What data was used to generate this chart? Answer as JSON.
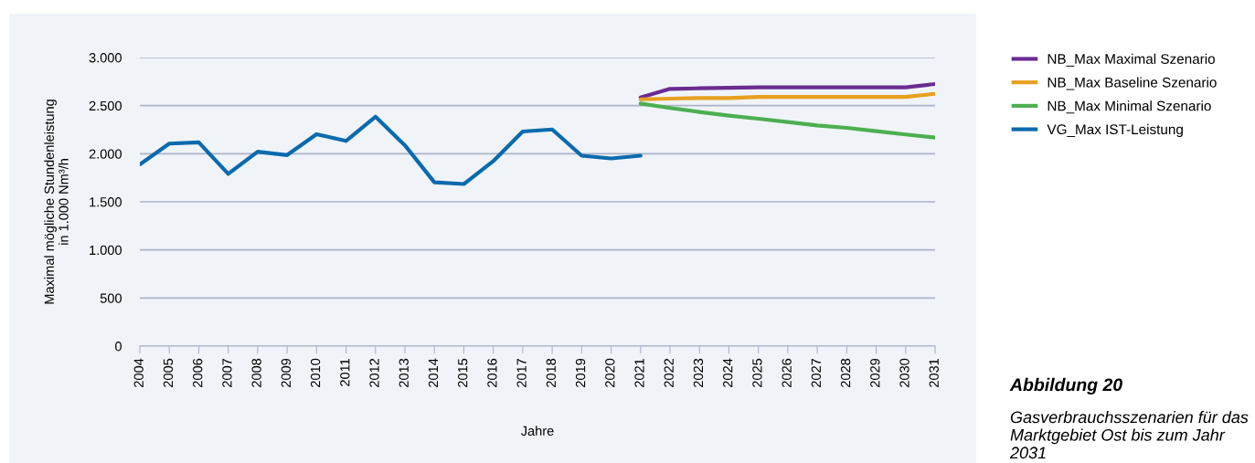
{
  "chart_data": {
    "type": "line",
    "categories": [
      "2004",
      "2005",
      "2006",
      "2007",
      "2008",
      "2009",
      "2010",
      "2011",
      "2012",
      "2013",
      "2014",
      "2015",
      "2016",
      "2017",
      "2018",
      "2019",
      "2020",
      "2021",
      "2022",
      "2023",
      "2024",
      "2025",
      "2026",
      "2027",
      "2028",
      "2029",
      "2030",
      "2031"
    ],
    "series": [
      {
        "name": "NB_Max Maximal Szenario",
        "color": "#6a2c91",
        "values": [
          null,
          null,
          null,
          null,
          null,
          null,
          null,
          null,
          null,
          null,
          null,
          null,
          null,
          null,
          null,
          null,
          null,
          2585,
          2674,
          2680,
          2685,
          2690,
          2690,
          2690,
          2690,
          2690,
          2690,
          2725
        ]
      },
      {
        "name": "NB_Max Baseline Szenario",
        "color": "#e8a020",
        "values": [
          null,
          null,
          null,
          null,
          null,
          null,
          null,
          null,
          null,
          null,
          null,
          null,
          null,
          null,
          null,
          null,
          null,
          2566,
          2573,
          2579,
          2579,
          2591,
          2591,
          2591,
          2591,
          2591,
          2591,
          2623
        ]
      },
      {
        "name": "NB_Max Minimal Szenario",
        "color": "#4caf50",
        "values": [
          null,
          null,
          null,
          null,
          null,
          null,
          null,
          null,
          null,
          null,
          null,
          null,
          null,
          null,
          null,
          null,
          null,
          2522,
          2475,
          2434,
          2396,
          2364,
          2329,
          2294,
          2269,
          2234,
          2200,
          2168
        ]
      },
      {
        "name": "VG_Max IST-Leistung",
        "color": "#0a6aad",
        "values": [
          1888,
          2105,
          2119,
          1790,
          2021,
          1986,
          2203,
          2133,
          2385,
          2087,
          1703,
          1685,
          1923,
          2231,
          2252,
          1979,
          1951,
          1979,
          null,
          null,
          null,
          null,
          null,
          null,
          null,
          null,
          null,
          null
        ]
      }
    ],
    "xlabel": "Jahre",
    "ylabel": "Maximal mögliche Stundenleistung\nin 1.000 Nm³/h",
    "ylim": [
      0,
      3000
    ],
    "yticks": [
      {
        "value": 0,
        "label": "0"
      },
      {
        "value": 500,
        "label": "500"
      },
      {
        "value": 1000,
        "label": "1.000"
      },
      {
        "value": 1500,
        "label": "1.500"
      },
      {
        "value": 2000,
        "label": "2.000"
      },
      {
        "value": 2500,
        "label": "2.500"
      },
      {
        "value": 3000,
        "label": "3.000"
      }
    ],
    "grid": "y",
    "legend": "top right",
    "marker": "none",
    "line_style": "solid",
    "annotations": [
      "Abbildung 20",
      "Gasverbrauchsszenarien für das Marktgebiet Ost bis zum Jahr 2031"
    ]
  }
}
